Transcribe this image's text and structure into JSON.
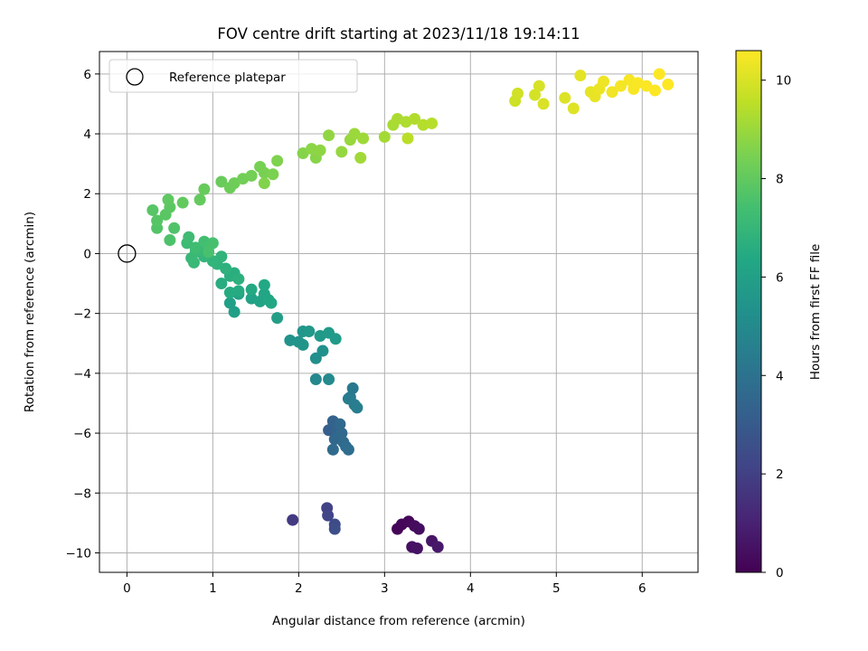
{
  "chart_data": {
    "type": "scatter",
    "title": "FOV centre drift starting at 2023/11/18 19:14:11",
    "xlabel": "Angular distance from reference (arcmin)",
    "ylabel": "Rotation from reference (arcmin)",
    "xlim": [
      -0.32,
      6.65
    ],
    "ylim": [
      -10.65,
      6.75
    ],
    "x_ticks": [
      0,
      1,
      2,
      3,
      4,
      5,
      6
    ],
    "x_tick_labels": [
      "0",
      "1",
      "2",
      "3",
      "4",
      "5",
      "6"
    ],
    "y_ticks": [
      -10,
      -8,
      -6,
      -4,
      -2,
      0,
      2,
      4,
      6
    ],
    "y_tick_labels": [
      "−10",
      "−8",
      "−6",
      "−4",
      "−2",
      "0",
      "2",
      "4",
      "6"
    ],
    "grid": true,
    "legend": {
      "position": "top-left",
      "entries": [
        "Reference platepar"
      ]
    },
    "reference_point": {
      "name": "Reference platepar",
      "x": 0,
      "y": 0
    },
    "colorbar": {
      "label": "Hours from first FF file",
      "colormap": "viridis",
      "range": [
        0,
        10.6
      ],
      "ticks": [
        0,
        2,
        4,
        6,
        8,
        10
      ],
      "tick_labels": [
        "0",
        "2",
        "4",
        "6",
        "8",
        "10"
      ]
    },
    "points": [
      [
        3.15,
        -9.2,
        0.1
      ],
      [
        3.2,
        -9.05,
        0.15
      ],
      [
        3.28,
        -8.95,
        0.2
      ],
      [
        3.35,
        -9.1,
        0.3
      ],
      [
        3.4,
        -9.2,
        0.35
      ],
      [
        3.32,
        -9.8,
        0.45
      ],
      [
        3.38,
        -9.85,
        0.5
      ],
      [
        3.55,
        -9.6,
        0.6
      ],
      [
        3.62,
        -9.8,
        0.7
      ],
      [
        1.93,
        -8.9,
        1.8
      ],
      [
        2.33,
        -8.5,
        2.1
      ],
      [
        2.34,
        -8.75,
        2.2
      ],
      [
        2.42,
        -9.05,
        2.4
      ],
      [
        2.42,
        -9.2,
        2.5
      ],
      [
        2.35,
        -5.9,
        3.2
      ],
      [
        2.4,
        -5.6,
        3.3
      ],
      [
        2.45,
        -5.9,
        3.4
      ],
      [
        2.42,
        -6.2,
        3.5
      ],
      [
        2.48,
        -5.7,
        3.55
      ],
      [
        2.5,
        -6.0,
        3.6
      ],
      [
        2.52,
        -6.3,
        3.65
      ],
      [
        2.4,
        -6.55,
        3.7
      ],
      [
        2.55,
        -6.45,
        3.75
      ],
      [
        2.58,
        -6.55,
        3.8
      ],
      [
        2.6,
        -4.8,
        4.2
      ],
      [
        2.63,
        -4.5,
        4.3
      ],
      [
        2.58,
        -4.85,
        4.4
      ],
      [
        2.65,
        -5.05,
        4.45
      ],
      [
        2.68,
        -5.15,
        4.5
      ],
      [
        2.2,
        -4.2,
        4.9
      ],
      [
        2.35,
        -4.2,
        5.0
      ],
      [
        2.2,
        -3.5,
        5.2
      ],
      [
        2.28,
        -3.25,
        5.3
      ],
      [
        1.9,
        -2.9,
        5.4
      ],
      [
        2.0,
        -2.95,
        5.45
      ],
      [
        2.05,
        -3.05,
        5.5
      ],
      [
        2.05,
        -2.6,
        5.55
      ],
      [
        2.12,
        -2.6,
        5.6
      ],
      [
        2.25,
        -2.75,
        5.65
      ],
      [
        2.35,
        -2.65,
        5.7
      ],
      [
        2.43,
        -2.85,
        5.75
      ],
      [
        1.75,
        -2.15,
        5.9
      ],
      [
        1.25,
        -1.95,
        5.95
      ],
      [
        1.2,
        -1.65,
        6.0
      ],
      [
        1.3,
        -1.35,
        6.05
      ],
      [
        1.45,
        -1.5,
        6.1
      ],
      [
        1.55,
        -1.6,
        6.15
      ],
      [
        1.6,
        -1.35,
        6.2
      ],
      [
        1.65,
        -1.55,
        6.25
      ],
      [
        1.68,
        -1.65,
        6.3
      ],
      [
        1.6,
        -1.05,
        6.35
      ],
      [
        1.45,
        -1.2,
        6.4
      ],
      [
        1.3,
        -1.25,
        6.45
      ],
      [
        1.2,
        -1.3,
        6.5
      ],
      [
        1.1,
        -1.0,
        6.55
      ],
      [
        1.2,
        -0.75,
        6.6
      ],
      [
        1.25,
        -0.65,
        6.65
      ],
      [
        1.3,
        -0.85,
        6.7
      ],
      [
        1.15,
        -0.5,
        6.75
      ],
      [
        1.05,
        -0.35,
        6.8
      ],
      [
        1.1,
        -0.1,
        6.85
      ],
      [
        1.0,
        -0.25,
        6.9
      ],
      [
        0.9,
        -0.1,
        6.95
      ],
      [
        0.85,
        0.05,
        7.0
      ],
      [
        0.75,
        -0.15,
        7.05
      ],
      [
        0.78,
        -0.3,
        7.1
      ],
      [
        0.8,
        0.1,
        7.15
      ],
      [
        0.7,
        0.35,
        7.2
      ],
      [
        0.72,
        0.55,
        7.25
      ],
      [
        0.8,
        0.2,
        7.3
      ],
      [
        0.9,
        0.4,
        7.35
      ],
      [
        0.95,
        0.2,
        7.4
      ],
      [
        1.0,
        0.35,
        7.45
      ],
      [
        0.95,
        0.05,
        7.5
      ],
      [
        0.5,
        0.45,
        7.6
      ],
      [
        0.55,
        0.85,
        7.65
      ],
      [
        0.35,
        0.85,
        7.7
      ],
      [
        0.35,
        1.1,
        7.75
      ],
      [
        0.3,
        1.45,
        7.8
      ],
      [
        0.45,
        1.3,
        7.85
      ],
      [
        0.5,
        1.55,
        7.9
      ],
      [
        0.48,
        1.8,
        7.95
      ],
      [
        0.65,
        1.7,
        8.0
      ],
      [
        0.85,
        1.8,
        8.05
      ],
      [
        0.9,
        2.15,
        8.1
      ],
      [
        1.1,
        2.4,
        8.15
      ],
      [
        1.2,
        2.2,
        8.2
      ],
      [
        1.25,
        2.35,
        8.25
      ],
      [
        1.35,
        2.5,
        8.3
      ],
      [
        1.45,
        2.6,
        8.35
      ],
      [
        1.55,
        2.9,
        8.4
      ],
      [
        1.6,
        2.7,
        8.45
      ],
      [
        1.7,
        2.65,
        8.5
      ],
      [
        1.75,
        3.1,
        8.55
      ],
      [
        1.6,
        2.35,
        8.6
      ],
      [
        2.05,
        3.35,
        8.65
      ],
      [
        2.2,
        3.2,
        8.7
      ],
      [
        2.15,
        3.5,
        8.75
      ],
      [
        2.25,
        3.45,
        8.8
      ],
      [
        2.35,
        3.95,
        8.85
      ],
      [
        2.5,
        3.4,
        8.9
      ],
      [
        2.6,
        3.8,
        8.95
      ],
      [
        2.65,
        4.0,
        9.0
      ],
      [
        2.75,
        3.85,
        9.05
      ],
      [
        2.72,
        3.2,
        9.1
      ],
      [
        3.0,
        3.9,
        9.15
      ],
      [
        3.1,
        4.3,
        9.2
      ],
      [
        3.15,
        4.5,
        9.25
      ],
      [
        3.25,
        4.4,
        9.3
      ],
      [
        3.35,
        4.5,
        9.35
      ],
      [
        3.45,
        4.3,
        9.4
      ],
      [
        3.55,
        4.35,
        9.45
      ],
      [
        3.27,
        3.85,
        9.5
      ],
      [
        4.52,
        5.1,
        9.8
      ],
      [
        4.55,
        5.35,
        9.85
      ],
      [
        4.75,
        5.3,
        9.9
      ],
      [
        4.8,
        5.6,
        9.95
      ],
      [
        4.85,
        5.0,
        10.0
      ],
      [
        5.1,
        5.2,
        10.05
      ],
      [
        5.2,
        4.85,
        10.1
      ],
      [
        5.28,
        5.95,
        10.15
      ],
      [
        5.4,
        5.4,
        10.2
      ],
      [
        5.45,
        5.25,
        10.25
      ],
      [
        5.5,
        5.5,
        10.3
      ],
      [
        5.55,
        5.75,
        10.35
      ],
      [
        5.65,
        5.4,
        10.4
      ],
      [
        5.75,
        5.6,
        10.45
      ],
      [
        5.85,
        5.8,
        10.5
      ],
      [
        5.9,
        5.5,
        10.52
      ],
      [
        5.95,
        5.7,
        10.54
      ],
      [
        6.05,
        5.6,
        10.56
      ],
      [
        6.15,
        5.45,
        10.58
      ],
      [
        6.2,
        6.0,
        10.6
      ],
      [
        6.3,
        5.65,
        10.6
      ]
    ]
  }
}
